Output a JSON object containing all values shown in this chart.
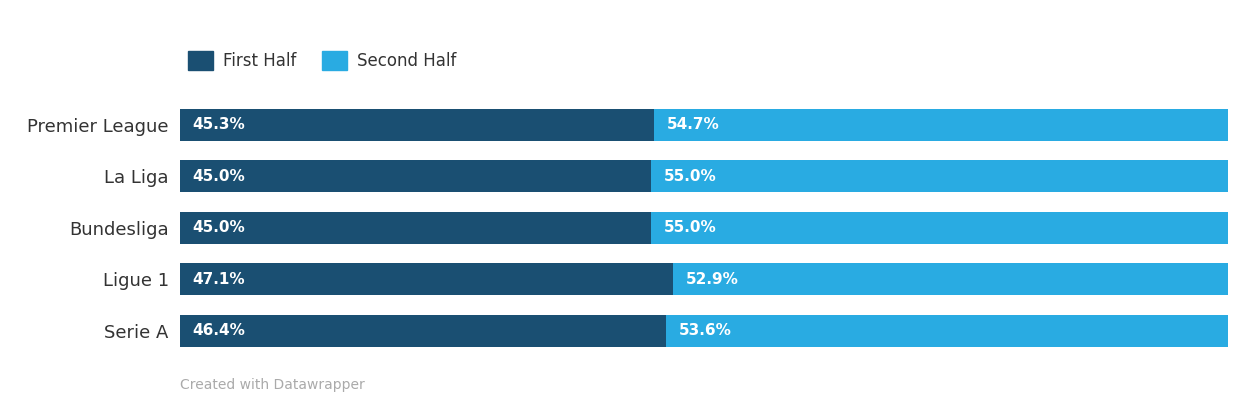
{
  "leagues": [
    "Premier League",
    "La Liga",
    "Bundesliga",
    "Ligue 1",
    "Serie A"
  ],
  "first_half": [
    45.3,
    45.0,
    45.0,
    47.1,
    46.4
  ],
  "second_half": [
    54.7,
    55.0,
    55.0,
    52.9,
    53.6
  ],
  "first_half_labels": [
    "45.3%",
    "45.0%",
    "45.0%",
    "47.1%",
    "46.4%"
  ],
  "second_half_labels": [
    "54.7%",
    "55.0%",
    "55.0%",
    "52.9%",
    "53.6%"
  ],
  "color_first_half": "#1a4f72",
  "color_second_half": "#29abe2",
  "background_color": "#ffffff",
  "legend_label_first": "First Half",
  "legend_label_second": "Second Half",
  "footer_text": "Created with Datawrapper",
  "bar_height": 0.62,
  "label_fontsize": 11,
  "legend_fontsize": 12,
  "ytick_fontsize": 13,
  "footer_fontsize": 10,
  "text_color": "#333333",
  "footer_color": "#aaaaaa"
}
